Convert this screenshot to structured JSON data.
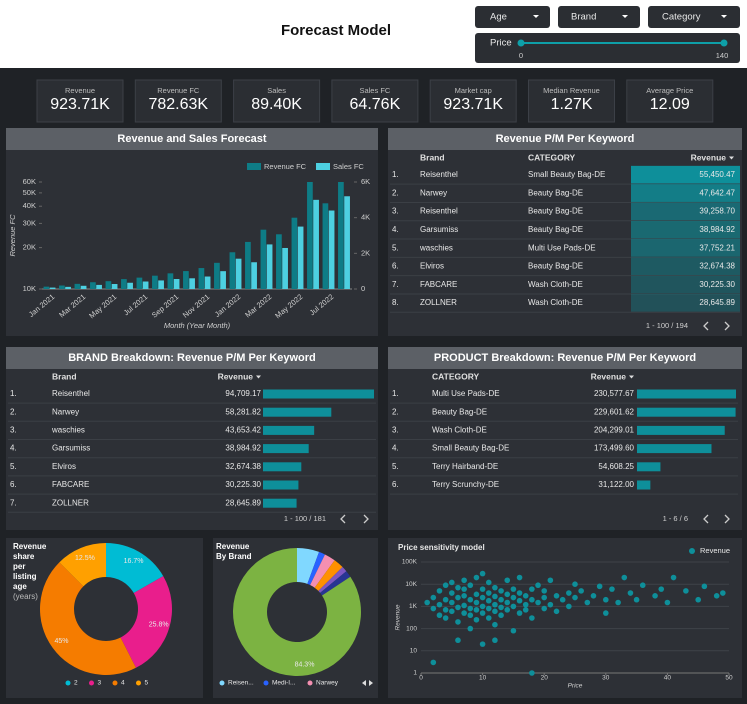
{
  "header": {
    "title": "Forecast Model",
    "filters": [
      "Age",
      "Brand",
      "Category"
    ],
    "slider": {
      "label": "Price",
      "min": 0,
      "max": 140
    }
  },
  "kpis": [
    {
      "label": "Revenue",
      "value": "923.71K"
    },
    {
      "label": "Revenue FC",
      "value": "782.63K"
    },
    {
      "label": "Sales",
      "value": "89.40K"
    },
    {
      "label": "Sales FC",
      "value": "64.76K"
    },
    {
      "label": "Market cap",
      "value": "923.71K"
    },
    {
      "label": "Median Revenue",
      "value": "1.27K"
    },
    {
      "label": "Average Price",
      "value": "12.09"
    }
  ],
  "chart_data": [
    {
      "type": "bar",
      "orientation": "vertical",
      "title": "Revenue and Sales Forecast",
      "x_label": "Month (Year Month)",
      "y_label": "Revenue FC",
      "categories": [
        "Jan 2021",
        null,
        "Mar 2021",
        null,
        "May 2021",
        null,
        "Jul 2021",
        null,
        "Sep 2021",
        null,
        "Nov 2021",
        null,
        "Jan 2022",
        null,
        "Mar 2022",
        null,
        "May 2022",
        null,
        "Jul 2022",
        null
      ],
      "series": [
        {
          "name": "Revenue FC",
          "color": "#0e7c86",
          "values": [
            10400,
            10600,
            10900,
            11200,
            11400,
            11800,
            12100,
            12500,
            13000,
            13500,
            14200,
            15500,
            18500,
            22000,
            27000,
            25000,
            33000,
            60000,
            42000,
            60000
          ]
        },
        {
          "name": "Sales FC",
          "color": "#4dd0e1",
          "axis": "y2",
          "values": [
            80,
            120,
            180,
            230,
            280,
            350,
            420,
            480,
            560,
            600,
            700,
            1000,
            1700,
            1500,
            2500,
            2300,
            3500,
            5000,
            4400,
            5200
          ]
        }
      ],
      "log_y": true,
      "ylim": [
        10000,
        60000
      ],
      "yticks": [
        {
          "value": 10000,
          "label": "10K"
        },
        {
          "value": 20000,
          "label": "20K"
        },
        {
          "value": 30000,
          "label": "30K"
        },
        {
          "value": 40000,
          "label": "40K"
        },
        {
          "value": 50000,
          "label": "50K"
        },
        {
          "value": 60000,
          "label": "60K"
        }
      ],
      "y2lim": [
        0,
        6000
      ],
      "y2ticks": [
        0,
        {
          "value": 2000,
          "label": "2K"
        },
        {
          "value": 4000,
          "label": "4K"
        },
        {
          "value": 6000,
          "label": "6K"
        }
      ]
    },
    {
      "type": "table",
      "title": "Revenue P/M Per Keyword",
      "columns": [
        "Brand",
        "CATEGORY",
        "Revenue"
      ],
      "row_numbers": [
        "1.",
        "2.",
        "3.",
        "4.",
        "5.",
        "6.",
        "7.",
        "8."
      ],
      "rows": [
        [
          "Reisenthel",
          "Small Beauty Bag-DE"
        ],
        [
          "Narwey",
          "Beauty Bag-DE"
        ],
        [
          "Reisenthel",
          "Beauty Bag-DE"
        ],
        [
          "Garsumiss",
          "Beauty Bag-DE"
        ],
        [
          "waschies",
          "Multi Use Pads-DE"
        ],
        [
          "Elviros",
          "Beauty Bag-DE"
        ],
        [
          "FABCARE",
          "Wash Cloth-DE"
        ],
        [
          "ZOLLNER",
          "Wash Cloth-DE"
        ]
      ],
      "values": [
        55450.47,
        47642.47,
        39258.7,
        38984.92,
        37752.21,
        32674.38,
        30225.3,
        28645.89
      ],
      "value_labels": [
        "55,450.47",
        "47,642.47",
        "39,258.70",
        "38,984.92",
        "37,752.21",
        "32,674.38",
        "30,225.30",
        "28,645.89"
      ],
      "color": "#0e8f9a",
      "pagination": "1 - 100 / 194"
    },
    {
      "type": "bar",
      "orientation": "horizontal",
      "title": "BRAND Breakdown: Revenue P/M Per Keyword",
      "columns": [
        "Brand",
        "Revenue"
      ],
      "row_numbers": [
        "1.",
        "2.",
        "3.",
        "4.",
        "5.",
        "6.",
        "7."
      ],
      "categories": [
        "Reisenthel",
        "Narwey",
        "waschies",
        "Garsumiss",
        "Elviros",
        "FABCARE",
        "ZOLLNER"
      ],
      "values": [
        94709.17,
        58281.82,
        43653.42,
        38984.92,
        32674.38,
        30225.3,
        28645.89
      ],
      "value_labels": [
        "94,709.17",
        "58,281.82",
        "43,653.42",
        "38,984.92",
        "32,674.38",
        "30,225.30",
        "28,645.89"
      ],
      "xlim": [
        0,
        94709.17
      ],
      "color": "#0e8f9a",
      "pagination": "1 - 100 / 181"
    },
    {
      "type": "bar",
      "orientation": "horizontal",
      "title": "PRODUCT Breakdown: Revenue P/M Per Keyword",
      "columns": [
        "CATEGORY",
        "Revenue"
      ],
      "row_numbers": [
        "1.",
        "2.",
        "3.",
        "4.",
        "5.",
        "6."
      ],
      "categories": [
        "Multi Use Pads-DE",
        "Beauty Bag-DE",
        "Wash Cloth-DE",
        "Small Beauty Bag-DE",
        "Terry Hairband-DE",
        "Terry Scrunchy-DE"
      ],
      "values": [
        230577.67,
        229601.62,
        204299.01,
        173499.6,
        54608.25,
        31122.0
      ],
      "value_labels": [
        "230,577.67",
        "229,601.62",
        "204,299.01",
        "173,499.60",
        "54,608.25",
        "31,122.00"
      ],
      "xlim": [
        0,
        230577.67
      ],
      "color": "#0e8f9a",
      "pagination": "1 - 6 / 6"
    },
    {
      "type": "pie",
      "title": "Revenue share per listing age",
      "subtitle": "(years)",
      "categories": [
        "2",
        "3",
        "4",
        "5"
      ],
      "values": [
        16.7,
        25.8,
        45,
        12.5
      ],
      "value_labels": [
        "16.7%",
        "25.8%",
        "45%",
        "12.5%"
      ],
      "colors": [
        "#00bcd4",
        "#e91e8c",
        "#f57c00",
        "#ffa000"
      ]
    },
    {
      "type": "pie",
      "title": "Revenue By Brand",
      "categories": [
        "Reisen...",
        "Medi-I...",
        "Narwey",
        null,
        null,
        null,
        null
      ],
      "values": [
        5.6,
        1.6,
        2.8,
        2.6,
        1.4,
        1.7,
        84.3
      ],
      "value_labels": [
        null,
        null,
        null,
        null,
        null,
        null,
        "84.3%"
      ],
      "colors": [
        "#80d8ff",
        "#2962ff",
        "#f48fb1",
        "#ff9100",
        "#7e57c2",
        "#283593",
        "#7cb342"
      ]
    },
    {
      "type": "scatter",
      "title": "Price sensitivity model",
      "x_label": "Price",
      "y_label": "Revenue",
      "series_name": "Revenue",
      "color": "#0e8f9a",
      "x": [
        1,
        2,
        2,
        2,
        3,
        3,
        3,
        4,
        4,
        4,
        4,
        5,
        5,
        5,
        5,
        6,
        6,
        6,
        6,
        6,
        7,
        7,
        7,
        7,
        7,
        8,
        8,
        8,
        8,
        8,
        9,
        9,
        9,
        9,
        9,
        10,
        10,
        10,
        10,
        10,
        10,
        11,
        11,
        11,
        11,
        11,
        12,
        12,
        12,
        12,
        12,
        12,
        13,
        13,
        13,
        13,
        14,
        14,
        14,
        14,
        15,
        15,
        15,
        15,
        16,
        16,
        16,
        16,
        17,
        17,
        17,
        18,
        18,
        18,
        18,
        19,
        19,
        20,
        20,
        20,
        21,
        21,
        22,
        22,
        23,
        24,
        24,
        25,
        25,
        26,
        27,
        28,
        29,
        30,
        30,
        31,
        32,
        33,
        34,
        35,
        36,
        38,
        39,
        40,
        41,
        43,
        45,
        46,
        48,
        49
      ],
      "y": [
        1500,
        3,
        800,
        2500,
        400,
        1200,
        5000,
        700,
        2000,
        9000,
        300,
        1500,
        4000,
        600,
        12000,
        30,
        900,
        2500,
        7000,
        200,
        1100,
        3000,
        500,
        15000,
        6000,
        800,
        2000,
        400,
        9000,
        100,
        1500,
        3500,
        700,
        20000,
        250,
        20,
        1000,
        2500,
        6000,
        500,
        30000,
        1800,
        4000,
        800,
        300,
        12000,
        30,
        1200,
        2800,
        600,
        7000,
        150,
        2000,
        5000,
        900,
        400,
        1500,
        3500,
        700,
        15000,
        1000,
        2500,
        6000,
        80,
        1800,
        4000,
        500,
        20000,
        1200,
        3000,
        700,
        1,
        2000,
        6000,
        300,
        1500,
        9000,
        800,
        2500,
        5000,
        1200,
        15000,
        3000,
        600,
        2000,
        4000,
        1000,
        10000,
        2500,
        5000,
        1500,
        3000,
        8000,
        2000,
        500,
        6000,
        1500,
        20000,
        4000,
        2000,
        9000,
        3000,
        6000,
        1500,
        20000,
        5000,
        2000,
        8000,
        3000,
        4000
      ],
      "xlim": [
        0,
        50
      ],
      "xticks": [
        0,
        10,
        20,
        30,
        40,
        50
      ],
      "log_y": true,
      "ylim": [
        1,
        100000
      ],
      "yticks": [
        1,
        10,
        100,
        {
          "value": 1000,
          "label": "1K"
        },
        {
          "value": 10000,
          "label": "10K"
        },
        {
          "value": 100000,
          "label": "100K"
        }
      ],
      "grid": true
    }
  ]
}
